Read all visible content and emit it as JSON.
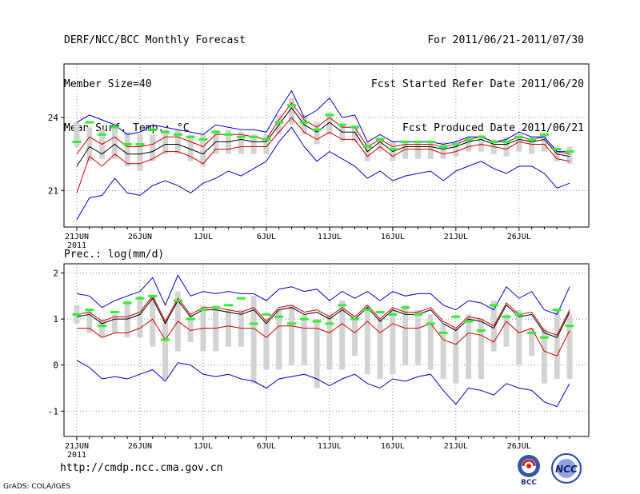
{
  "header": {
    "title": "DERF/NCC/BCC Monthly Forecast",
    "member_size": "Member Size=40",
    "variable1": "Mean Surf. Temp.: °C",
    "period": "For 2011/06/21-2011/07/30",
    "start_date": "Fcst Started Refer Date 2011/06/20",
    "produced_date": "Fcst Produced Date 2011/06/21"
  },
  "footer": {
    "url": "http://cmdp.ncc.cma.gov.cn",
    "grads": "GrADS: COLA/IGES",
    "logo_bcc": "BCC",
    "logo_ncc": "NCC"
  },
  "colors": {
    "black": "#000000",
    "red": "#cc0000",
    "blue": "#0000cc",
    "green": "#33ee33",
    "box": "#d3d3d3"
  },
  "chart_data": [
    {
      "type": "line",
      "title": "Mean Surf. Temp.: °C",
      "x_ticks": [
        "21JUN",
        "26JUN",
        "1JUL",
        "6JUL",
        "11JUL",
        "16JUL",
        "21JUL",
        "26JUL"
      ],
      "x_year": "2011",
      "y_ticks": [
        21,
        24
      ],
      "ylim": [
        19.5,
        26.2
      ],
      "days": 40,
      "series": [
        {
          "name": "ensemble-mean",
          "color": "black",
          "values": [
            22.0,
            22.8,
            22.5,
            22.9,
            22.5,
            22.5,
            22.6,
            22.9,
            22.9,
            22.7,
            22.5,
            23.0,
            23.0,
            23.1,
            23.0,
            23.0,
            23.7,
            24.4,
            23.7,
            23.4,
            23.8,
            23.4,
            23.4,
            22.6,
            23.0,
            22.6,
            22.8,
            22.8,
            22.8,
            22.7,
            22.8,
            23.0,
            23.1,
            22.9,
            22.9,
            23.1,
            23.0,
            23.1,
            22.5,
            22.4
          ]
        },
        {
          "name": "upper-red",
          "color": "red",
          "values": [
            22.5,
            23.2,
            22.9,
            23.2,
            22.8,
            22.8,
            22.9,
            23.2,
            23.2,
            23.0,
            22.8,
            23.3,
            23.3,
            23.3,
            23.2,
            23.1,
            23.9,
            24.6,
            23.9,
            23.6,
            24.0,
            23.6,
            23.6,
            22.8,
            23.1,
            22.8,
            22.9,
            22.9,
            22.9,
            22.8,
            22.9,
            23.1,
            23.2,
            23.0,
            23.0,
            23.2,
            23.1,
            23.2,
            22.6,
            22.5
          ]
        },
        {
          "name": "lower-red",
          "color": "red",
          "values": [
            20.9,
            22.4,
            22.0,
            22.5,
            22.1,
            22.1,
            22.3,
            22.6,
            22.6,
            22.4,
            22.1,
            22.7,
            22.7,
            22.8,
            22.8,
            22.8,
            23.4,
            24.0,
            23.4,
            23.1,
            23.4,
            23.1,
            23.1,
            22.4,
            22.8,
            22.4,
            22.7,
            22.7,
            22.7,
            22.5,
            22.6,
            22.8,
            22.9,
            22.8,
            22.7,
            23.0,
            22.9,
            22.9,
            22.3,
            22.2
          ]
        },
        {
          "name": "upper-blue",
          "color": "blue",
          "values": [
            23.8,
            24.1,
            23.9,
            23.7,
            23.3,
            23.4,
            23.7,
            23.6,
            23.5,
            23.4,
            23.3,
            23.7,
            23.6,
            23.5,
            23.5,
            23.4,
            24.3,
            25.1,
            24.0,
            24.3,
            24.8,
            24.0,
            24.1,
            23.0,
            23.3,
            23.0,
            23.0,
            23.0,
            23.0,
            22.9,
            23.0,
            23.2,
            23.2,
            23.0,
            23.1,
            23.4,
            23.2,
            23.2,
            22.6,
            22.6
          ]
        },
        {
          "name": "lower-blue",
          "color": "blue",
          "values": [
            19.8,
            20.7,
            20.8,
            21.5,
            20.9,
            20.8,
            21.2,
            21.4,
            21.2,
            20.9,
            21.3,
            21.5,
            21.8,
            21.6,
            21.9,
            22.2,
            23.0,
            23.6,
            22.8,
            22.2,
            22.6,
            22.3,
            22.0,
            21.5,
            21.8,
            21.4,
            21.6,
            21.7,
            21.8,
            21.4,
            21.8,
            22.0,
            22.2,
            21.9,
            21.7,
            22.0,
            22.0,
            21.7,
            21.1,
            21.3
          ]
        },
        {
          "name": "observation-markers",
          "color": "green",
          "values": [
            23.0,
            23.8,
            23.3,
            23.6,
            22.9,
            22.9,
            23.5,
            23.4,
            23.3,
            23.2,
            23.1,
            23.4,
            23.3,
            23.2,
            23.2,
            23.1,
            23.8,
            24.5,
            23.8,
            23.5,
            24.1,
            23.7,
            23.6,
            22.8,
            23.1,
            22.7,
            23.0,
            23.0,
            23.0,
            22.8,
            22.9,
            23.1,
            23.2,
            23.0,
            23.0,
            23.2,
            23.1,
            23.3,
            22.7,
            22.6
          ]
        }
      ],
      "boxes": [
        [
          22.8,
          23.8
        ],
        [
          22.2,
          23.6
        ],
        [
          22.3,
          23.5
        ],
        [
          22.3,
          23.6
        ],
        [
          22.0,
          23.4
        ],
        [
          21.8,
          23.3
        ],
        [
          22.2,
          23.3
        ],
        [
          22.5,
          23.5
        ],
        [
          22.5,
          23.5
        ],
        [
          22.2,
          23.3
        ],
        [
          22.0,
          23.3
        ],
        [
          22.5,
          23.5
        ],
        [
          22.5,
          23.5
        ],
        [
          22.5,
          23.4
        ],
        [
          22.5,
          23.3
        ],
        [
          22.5,
          23.3
        ],
        [
          23.3,
          24.1
        ],
        [
          23.7,
          24.8
        ],
        [
          23.3,
          24.1
        ],
        [
          22.9,
          23.8
        ],
        [
          23.3,
          24.2
        ],
        [
          23.0,
          23.7
        ],
        [
          23.0,
          23.7
        ],
        [
          22.2,
          23.0
        ],
        [
          22.6,
          23.2
        ],
        [
          22.2,
          23.0
        ],
        [
          22.3,
          23.0
        ],
        [
          22.3,
          23.0
        ],
        [
          22.3,
          23.0
        ],
        [
          22.3,
          23.0
        ],
        [
          22.4,
          23.0
        ],
        [
          22.6,
          23.2
        ],
        [
          22.6,
          23.3
        ],
        [
          22.5,
          23.1
        ],
        [
          22.4,
          23.2
        ],
        [
          22.6,
          23.3
        ],
        [
          22.5,
          23.2
        ],
        [
          22.6,
          23.3
        ],
        [
          22.2,
          22.8
        ],
        [
          22.1,
          22.8
        ]
      ]
    },
    {
      "type": "line",
      "title": "Prec.: log(mm/d)",
      "x_ticks": [
        "21JUN",
        "26JUN",
        "1JUL",
        "6JUL",
        "11JUL",
        "16JUL",
        "21JUL",
        "26JUL"
      ],
      "x_year": "2011",
      "y_ticks": [
        -1,
        0,
        1,
        2
      ],
      "ylim": [
        -1.55,
        2.2
      ],
      "days": 40,
      "series": [
        {
          "name": "ensemble-mean",
          "color": "black",
          "values": [
            1.05,
            1.1,
            0.9,
            1.0,
            1.0,
            1.1,
            1.45,
            0.9,
            1.4,
            1.05,
            1.2,
            1.2,
            1.15,
            1.1,
            1.2,
            0.9,
            1.2,
            1.25,
            1.1,
            1.15,
            1.0,
            1.2,
            1.0,
            1.25,
            0.95,
            1.2,
            1.1,
            1.1,
            1.2,
            0.9,
            0.75,
            1.0,
            0.95,
            0.8,
            1.3,
            1.05,
            1.1,
            0.7,
            0.6,
            1.15
          ]
        },
        {
          "name": "upper-red",
          "color": "red",
          "values": [
            1.1,
            1.15,
            0.95,
            1.05,
            1.05,
            1.15,
            1.5,
            0.95,
            1.45,
            1.1,
            1.25,
            1.25,
            1.2,
            1.15,
            1.25,
            0.95,
            1.25,
            1.3,
            1.15,
            1.2,
            1.05,
            1.25,
            1.05,
            1.3,
            1.0,
            1.25,
            1.15,
            1.15,
            1.25,
            0.95,
            0.8,
            1.05,
            1.0,
            0.85,
            1.35,
            1.1,
            1.15,
            0.75,
            0.65,
            1.2
          ]
        },
        {
          "name": "lower-red",
          "color": "red",
          "values": [
            0.8,
            0.8,
            0.6,
            0.7,
            0.7,
            0.8,
            1.0,
            0.55,
            0.95,
            0.75,
            0.8,
            0.8,
            0.85,
            0.8,
            0.8,
            0.6,
            0.85,
            0.85,
            0.8,
            0.8,
            0.7,
            0.9,
            0.7,
            0.95,
            0.7,
            0.9,
            0.8,
            0.8,
            0.9,
            0.55,
            0.45,
            0.7,
            0.65,
            0.5,
            0.95,
            0.7,
            0.8,
            0.3,
            0.2,
            0.75
          ]
        },
        {
          "name": "upper-blue",
          "color": "blue",
          "values": [
            1.55,
            1.5,
            1.25,
            1.4,
            1.5,
            1.6,
            1.9,
            1.3,
            1.95,
            1.5,
            1.6,
            1.55,
            1.6,
            1.55,
            1.55,
            1.4,
            1.65,
            1.7,
            1.6,
            1.65,
            1.4,
            1.6,
            1.45,
            1.6,
            1.4,
            1.6,
            1.5,
            1.55,
            1.55,
            1.3,
            1.2,
            1.4,
            1.35,
            1.2,
            1.7,
            1.45,
            1.6,
            1.2,
            1.1,
            1.7
          ]
        },
        {
          "name": "lower-blue",
          "color": "blue",
          "values": [
            0.1,
            -0.05,
            -0.3,
            -0.25,
            -0.3,
            -0.2,
            -0.1,
            -0.35,
            0.05,
            0.0,
            -0.2,
            -0.25,
            -0.2,
            -0.3,
            -0.35,
            -0.5,
            -0.3,
            -0.25,
            -0.2,
            -0.3,
            -0.45,
            -0.3,
            -0.2,
            -0.4,
            -0.5,
            -0.3,
            -0.35,
            -0.25,
            -0.2,
            -0.55,
            -0.85,
            -0.5,
            -0.55,
            -0.65,
            -0.4,
            -0.5,
            -0.55,
            -0.8,
            -0.9,
            -0.4
          ]
        },
        {
          "name": "observation-markers",
          "color": "green",
          "values": [
            1.1,
            1.2,
            0.85,
            1.15,
            1.35,
            1.45,
            1.5,
            0.55,
            1.4,
            1.0,
            1.2,
            1.25,
            1.3,
            1.45,
            0.9,
            1.1,
            1.05,
            0.9,
            1.0,
            0.95,
            0.9,
            1.3,
            1.0,
            1.2,
            1.15,
            1.1,
            1.25,
            1.1,
            0.9,
            0.7,
            1.05,
            0.95,
            0.75,
            1.3,
            1.05,
            1.1,
            0.7,
            0.6,
            1.2,
            0.85
          ]
        }
      ],
      "boxes": [
        [
          0.9,
          1.3
        ],
        [
          0.7,
          1.2
        ],
        [
          0.6,
          1.0
        ],
        [
          0.7,
          1.1
        ],
        [
          0.6,
          1.4
        ],
        [
          0.6,
          1.5
        ],
        [
          0.4,
          1.5
        ],
        [
          -0.3,
          1.0
        ],
        [
          0.3,
          1.6
        ],
        [
          0.5,
          1.1
        ],
        [
          0.3,
          1.3
        ],
        [
          0.3,
          1.3
        ],
        [
          0.4,
          1.2
        ],
        [
          0.4,
          1.2
        ],
        [
          -0.4,
          1.5
        ],
        [
          -0.1,
          1.0
        ],
        [
          -0.1,
          1.2
        ],
        [
          0.0,
          1.3
        ],
        [
          0.0,
          1.1
        ],
        [
          -0.5,
          1.0
        ],
        [
          -0.1,
          1.1
        ],
        [
          -0.1,
          1.4
        ],
        [
          0.2,
          1.0
        ],
        [
          -0.2,
          1.3
        ],
        [
          -0.3,
          1.0
        ],
        [
          -0.2,
          1.2
        ],
        [
          0.0,
          1.3
        ],
        [
          0.0,
          1.2
        ],
        [
          -0.1,
          1.1
        ],
        [
          -0.3,
          0.9
        ],
        [
          -0.4,
          0.8
        ],
        [
          -0.3,
          1.1
        ],
        [
          -0.3,
          1.0
        ],
        [
          0.3,
          1.4
        ],
        [
          0.4,
          1.1
        ],
        [
          0.0,
          1.2
        ],
        [
          0.2,
          0.8
        ],
        [
          -0.4,
          0.8
        ],
        [
          -0.3,
          1.2
        ],
        [
          -0.3,
          1.1
        ]
      ]
    }
  ]
}
